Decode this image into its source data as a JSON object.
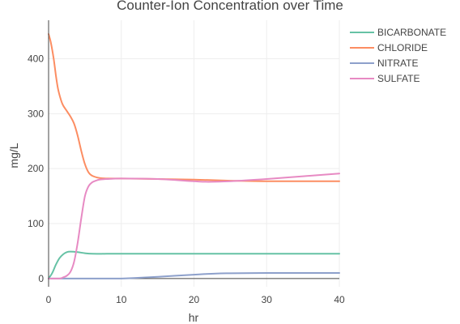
{
  "chart_data": {
    "type": "line",
    "title": "Counter-Ion Concentration over Time",
    "xlabel": "hr",
    "ylabel": "mg/L",
    "xlim": [
      0,
      40
    ],
    "ylim": [
      -15,
      470
    ],
    "xticks": [
      0,
      10,
      20,
      30,
      40
    ],
    "yticks": [
      0,
      100,
      200,
      300,
      400
    ],
    "grid": true,
    "legend_position": "top-right",
    "series": [
      {
        "name": "BICARBONATE",
        "color": "#66c2a5",
        "x": [
          0,
          0.5,
          1,
          1.5,
          2,
          2.5,
          3,
          4,
          5,
          6,
          8,
          10,
          15,
          20,
          25,
          30,
          35,
          40
        ],
        "y": [
          0,
          10,
          25,
          37,
          44,
          48,
          49,
          48,
          46,
          45,
          45,
          45,
          45,
          45,
          45,
          45,
          45,
          45
        ]
      },
      {
        "name": "CHLORIDE",
        "color": "#fc8d62",
        "x": [
          0,
          0.3,
          0.7,
          1,
          1.3,
          1.7,
          2,
          2.5,
          3,
          3.5,
          4,
          4.5,
          5,
          5.5,
          6,
          7,
          8,
          10,
          15,
          20,
          25,
          30,
          35,
          40
        ],
        "y": [
          445,
          430,
          400,
          370,
          345,
          325,
          315,
          305,
          295,
          282,
          260,
          232,
          208,
          193,
          187,
          183,
          182,
          182,
          181,
          180,
          178,
          177,
          177,
          177
        ]
      },
      {
        "name": "NITRATE",
        "color": "#8da0cb",
        "x": [
          0,
          5,
          10,
          12,
          15,
          20,
          23,
          25,
          30,
          35,
          40
        ],
        "y": [
          0,
          0,
          0,
          1,
          3,
          7,
          9,
          9.5,
          10,
          10,
          10
        ]
      },
      {
        "name": "SULFATE",
        "color": "#e78ac3",
        "x": [
          0,
          1.5,
          2,
          2.5,
          3,
          3.5,
          4,
          4.5,
          5,
          5.5,
          6,
          6.5,
          7,
          8,
          10,
          15,
          20,
          22,
          25,
          30,
          35,
          40
        ],
        "y": [
          0,
          0,
          2,
          5,
          12,
          30,
          65,
          110,
          150,
          168,
          175,
          178,
          180,
          181,
          182,
          181,
          177,
          176,
          177,
          181,
          186,
          191
        ]
      }
    ]
  }
}
